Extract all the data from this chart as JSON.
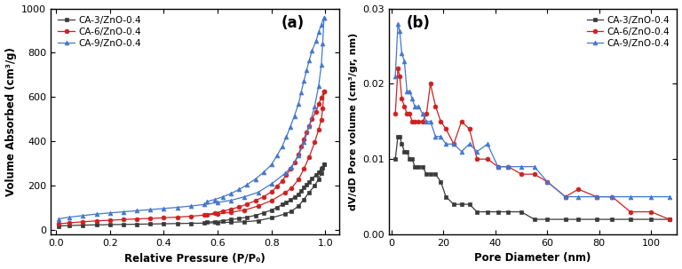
{
  "panel_a": {
    "title": "(a)",
    "xlabel": "Relative Pressure (P/P₀)",
    "ylabel": "Volume Absorbed (cm³/g)",
    "ylim": [
      -20,
      1000
    ],
    "xlim": [
      -0.02,
      1.05
    ],
    "yticks": [
      0,
      200,
      400,
      600,
      800,
      1000
    ],
    "xticks": [
      0.0,
      0.2,
      0.4,
      0.6,
      0.8,
      1.0
    ],
    "series": [
      {
        "label": "CA-3/ZnO-0.4",
        "color": "#3a3a3a",
        "marker": "s",
        "x_ads": [
          0.01,
          0.05,
          0.1,
          0.15,
          0.2,
          0.25,
          0.3,
          0.35,
          0.4,
          0.45,
          0.5,
          0.55,
          0.6,
          0.65,
          0.7,
          0.75,
          0.8,
          0.85,
          0.875,
          0.9,
          0.92,
          0.94,
          0.96,
          0.975,
          0.985,
          0.99,
          0.995
        ],
        "y_ads": [
          18,
          20,
          22,
          23,
          24,
          25,
          26,
          27,
          28,
          29,
          30,
          31,
          33,
          35,
          37,
          42,
          55,
          72,
          85,
          108,
          138,
          170,
          200,
          230,
          258,
          280,
          295
        ],
        "x_des": [
          0.995,
          0.985,
          0.975,
          0.965,
          0.95,
          0.94,
          0.93,
          0.92,
          0.91,
          0.9,
          0.885,
          0.87,
          0.855,
          0.84,
          0.82,
          0.8,
          0.77,
          0.74,
          0.71,
          0.68,
          0.65,
          0.62,
          0.59,
          0.56
        ],
        "y_des": [
          295,
          278,
          262,
          248,
          232,
          218,
          205,
          192,
          178,
          162,
          148,
          136,
          125,
          115,
          102,
          90,
          77,
          66,
          58,
          52,
          47,
          42,
          38,
          35
        ]
      },
      {
        "label": "CA-6/ZnO-0.4",
        "color": "#cc2222",
        "marker": "o",
        "x_ads": [
          0.01,
          0.05,
          0.1,
          0.15,
          0.2,
          0.25,
          0.3,
          0.35,
          0.4,
          0.45,
          0.5,
          0.55,
          0.6,
          0.65,
          0.7,
          0.75,
          0.8,
          0.85,
          0.875,
          0.9,
          0.92,
          0.94,
          0.96,
          0.975,
          0.985,
          0.99,
          0.995
        ],
        "y_ads": [
          28,
          32,
          37,
          41,
          44,
          47,
          50,
          52,
          55,
          58,
          62,
          67,
          73,
          80,
          90,
          108,
          133,
          168,
          190,
          228,
          275,
          330,
          395,
          453,
          498,
          548,
          625
        ],
        "x_des": [
          0.995,
          0.985,
          0.975,
          0.965,
          0.95,
          0.94,
          0.93,
          0.92,
          0.91,
          0.9,
          0.885,
          0.87,
          0.855,
          0.84,
          0.82,
          0.8,
          0.77,
          0.74,
          0.71,
          0.68,
          0.65,
          0.62,
          0.59,
          0.56
        ],
        "y_des": [
          625,
          598,
          568,
          535,
          500,
          470,
          440,
          410,
          375,
          340,
          305,
          275,
          248,
          222,
          196,
          172,
          150,
          132,
          117,
          104,
          94,
          85,
          77,
          70
        ]
      },
      {
        "label": "CA-9/ZnO-0.4",
        "color": "#4477cc",
        "marker": "^",
        "x_ads": [
          0.01,
          0.05,
          0.1,
          0.15,
          0.2,
          0.25,
          0.3,
          0.35,
          0.4,
          0.45,
          0.5,
          0.55,
          0.6,
          0.65,
          0.7,
          0.75,
          0.8,
          0.85,
          0.875,
          0.9,
          0.92,
          0.94,
          0.96,
          0.975,
          0.985,
          0.99,
          0.995
        ],
        "y_ads": [
          50,
          58,
          65,
          72,
          77,
          82,
          87,
          92,
          97,
          102,
          108,
          115,
          124,
          134,
          150,
          170,
          208,
          255,
          285,
          335,
          395,
          470,
          558,
          650,
          745,
          840,
          960
        ],
        "x_des": [
          0.995,
          0.985,
          0.975,
          0.965,
          0.95,
          0.94,
          0.93,
          0.92,
          0.91,
          0.9,
          0.885,
          0.87,
          0.855,
          0.84,
          0.82,
          0.8,
          0.77,
          0.74,
          0.71,
          0.68,
          0.65,
          0.62,
          0.59,
          0.56
        ],
        "y_des": [
          960,
          928,
          892,
          852,
          808,
          765,
          720,
          672,
          620,
          568,
          515,
          466,
          420,
          378,
          335,
          295,
          260,
          230,
          205,
          183,
          165,
          150,
          138,
          128
        ]
      }
    ]
  },
  "panel_b": {
    "title": "(b)",
    "xlabel": "Pore Diameter (nm)",
    "ylabel": "dV/dD Pore volume (cm³/gr, nm)",
    "ylim": [
      0.0,
      0.03
    ],
    "xlim": [
      -1,
      110
    ],
    "yticks": [
      0.0,
      0.01,
      0.02,
      0.03
    ],
    "xticks": [
      0,
      20,
      40,
      60,
      80,
      100
    ],
    "series": [
      {
        "label": "CA-3/ZnO-0.4",
        "color": "#3a3a3a",
        "marker": "s",
        "x": [
          1.5,
          2.5,
          3.2,
          4.0,
          5.0,
          6.0,
          7.0,
          8.0,
          9.0,
          10.5,
          12,
          13.5,
          15,
          17,
          19,
          21,
          24,
          27,
          30,
          33,
          37,
          41,
          45,
          50,
          55,
          60,
          67,
          72,
          79,
          85,
          92,
          100,
          107
        ],
        "y": [
          0.01,
          0.013,
          0.013,
          0.012,
          0.011,
          0.011,
          0.01,
          0.01,
          0.009,
          0.009,
          0.009,
          0.008,
          0.008,
          0.008,
          0.007,
          0.005,
          0.004,
          0.004,
          0.004,
          0.003,
          0.003,
          0.003,
          0.003,
          0.003,
          0.002,
          0.002,
          0.002,
          0.002,
          0.002,
          0.002,
          0.002,
          0.002,
          0.002
        ]
      },
      {
        "label": "CA-6/ZnO-0.4",
        "color": "#cc2222",
        "marker": "o",
        "x": [
          1.5,
          2.5,
          3.2,
          4.0,
          5.0,
          6.0,
          7.0,
          8.0,
          9.0,
          10.5,
          12,
          13.5,
          15,
          17,
          19,
          21,
          24,
          27,
          30,
          33,
          37,
          41,
          45,
          50,
          55,
          60,
          67,
          72,
          79,
          85,
          92,
          100,
          107
        ],
        "y": [
          0.016,
          0.022,
          0.021,
          0.018,
          0.017,
          0.016,
          0.016,
          0.015,
          0.015,
          0.015,
          0.015,
          0.016,
          0.02,
          0.017,
          0.015,
          0.014,
          0.012,
          0.015,
          0.014,
          0.01,
          0.01,
          0.009,
          0.009,
          0.008,
          0.008,
          0.007,
          0.005,
          0.006,
          0.005,
          0.005,
          0.003,
          0.003,
          0.002
        ]
      },
      {
        "label": "CA-9/ZnO-0.4",
        "color": "#4477cc",
        "marker": "^",
        "x": [
          1.5,
          2.5,
          3.2,
          4.0,
          5.0,
          6.0,
          7.0,
          8.0,
          9.0,
          10.5,
          12,
          13.5,
          15,
          17,
          19,
          21,
          24,
          27,
          30,
          33,
          37,
          41,
          45,
          50,
          55,
          60,
          67,
          72,
          79,
          85,
          92,
          100,
          107
        ],
        "y": [
          0.021,
          0.028,
          0.027,
          0.024,
          0.023,
          0.019,
          0.019,
          0.018,
          0.017,
          0.017,
          0.016,
          0.015,
          0.015,
          0.013,
          0.013,
          0.012,
          0.012,
          0.011,
          0.012,
          0.011,
          0.012,
          0.009,
          0.009,
          0.009,
          0.009,
          0.007,
          0.005,
          0.005,
          0.005,
          0.005,
          0.005,
          0.005,
          0.005
        ]
      }
    ]
  }
}
